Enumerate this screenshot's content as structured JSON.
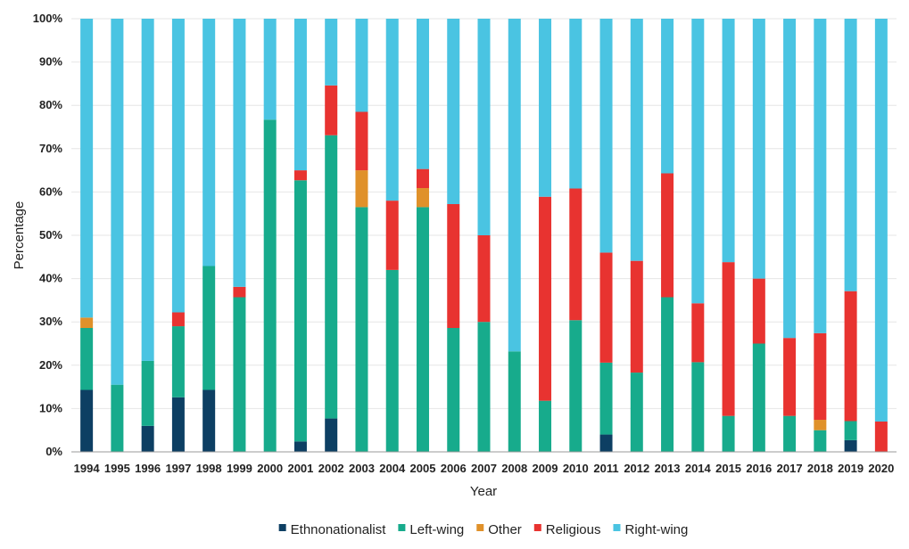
{
  "chart_data": {
    "type": "bar",
    "stacked": true,
    "normalized": true,
    "xlabel": "Year",
    "ylabel": "Percentage",
    "ylim": [
      0,
      100
    ],
    "yticks": [
      "0%",
      "10%",
      "20%",
      "30%",
      "40%",
      "50%",
      "60%",
      "70%",
      "80%",
      "90%",
      "100%"
    ],
    "categories": [
      "1994",
      "1995",
      "1996",
      "1997",
      "1998",
      "1999",
      "2000",
      "2001",
      "2002",
      "2003",
      "2004",
      "2005",
      "2006",
      "2007",
      "2008",
      "2009",
      "2010",
      "2011",
      "2012",
      "2013",
      "2014",
      "2015",
      "2016",
      "2017",
      "2018",
      "2019",
      "2020"
    ],
    "legend_position": "bottom",
    "series": [
      {
        "name": "Ethnonationalist",
        "color": "#0d3f63",
        "values": [
          14.3,
          0,
          6.0,
          12.6,
          14.3,
          0,
          0,
          2.4,
          7.7,
          0,
          0,
          0,
          0,
          0,
          0,
          0,
          0,
          4.0,
          0,
          0,
          0,
          0,
          0,
          0,
          0,
          2.7,
          0
        ]
      },
      {
        "name": "Left-wing",
        "color": "#17ab8c",
        "values": [
          14.3,
          15.5,
          15.0,
          16.4,
          28.6,
          35.7,
          76.7,
          60.3,
          65.4,
          56.5,
          42.0,
          56.5,
          28.6,
          30.0,
          23.2,
          11.8,
          30.4,
          16.6,
          18.3,
          35.7,
          20.7,
          8.3,
          25.0,
          8.3,
          5.0,
          4.4,
          0
        ]
      },
      {
        "name": "Other",
        "color": "#e0912a",
        "values": [
          2.4,
          0,
          0,
          0,
          0,
          0,
          0,
          0,
          0,
          8.5,
          0,
          4.4,
          0,
          0,
          0,
          0,
          0,
          0,
          0,
          0,
          0,
          0,
          0,
          0,
          2.4,
          0,
          0
        ]
      },
      {
        "name": "Religious",
        "color": "#e83330",
        "values": [
          0,
          0,
          0,
          3.2,
          0,
          2.4,
          0,
          2.3,
          11.5,
          13.5,
          16.0,
          4.4,
          28.6,
          20.0,
          0,
          47.1,
          30.4,
          25.4,
          25.8,
          28.6,
          13.6,
          35.5,
          15.0,
          18.0,
          20.0,
          30.0,
          7.0
        ]
      },
      {
        "name": "Right-wing",
        "color": "#4ac4e2",
        "values": [
          69.0,
          84.5,
          79.0,
          67.8,
          57.1,
          61.9,
          23.3,
          35.0,
          15.4,
          21.5,
          42.0,
          34.7,
          42.8,
          50.0,
          76.8,
          41.1,
          39.2,
          54.0,
          55.9,
          35.7,
          65.7,
          56.2,
          60.0,
          73.7,
          72.6,
          62.9,
          93.0
        ]
      }
    ]
  }
}
